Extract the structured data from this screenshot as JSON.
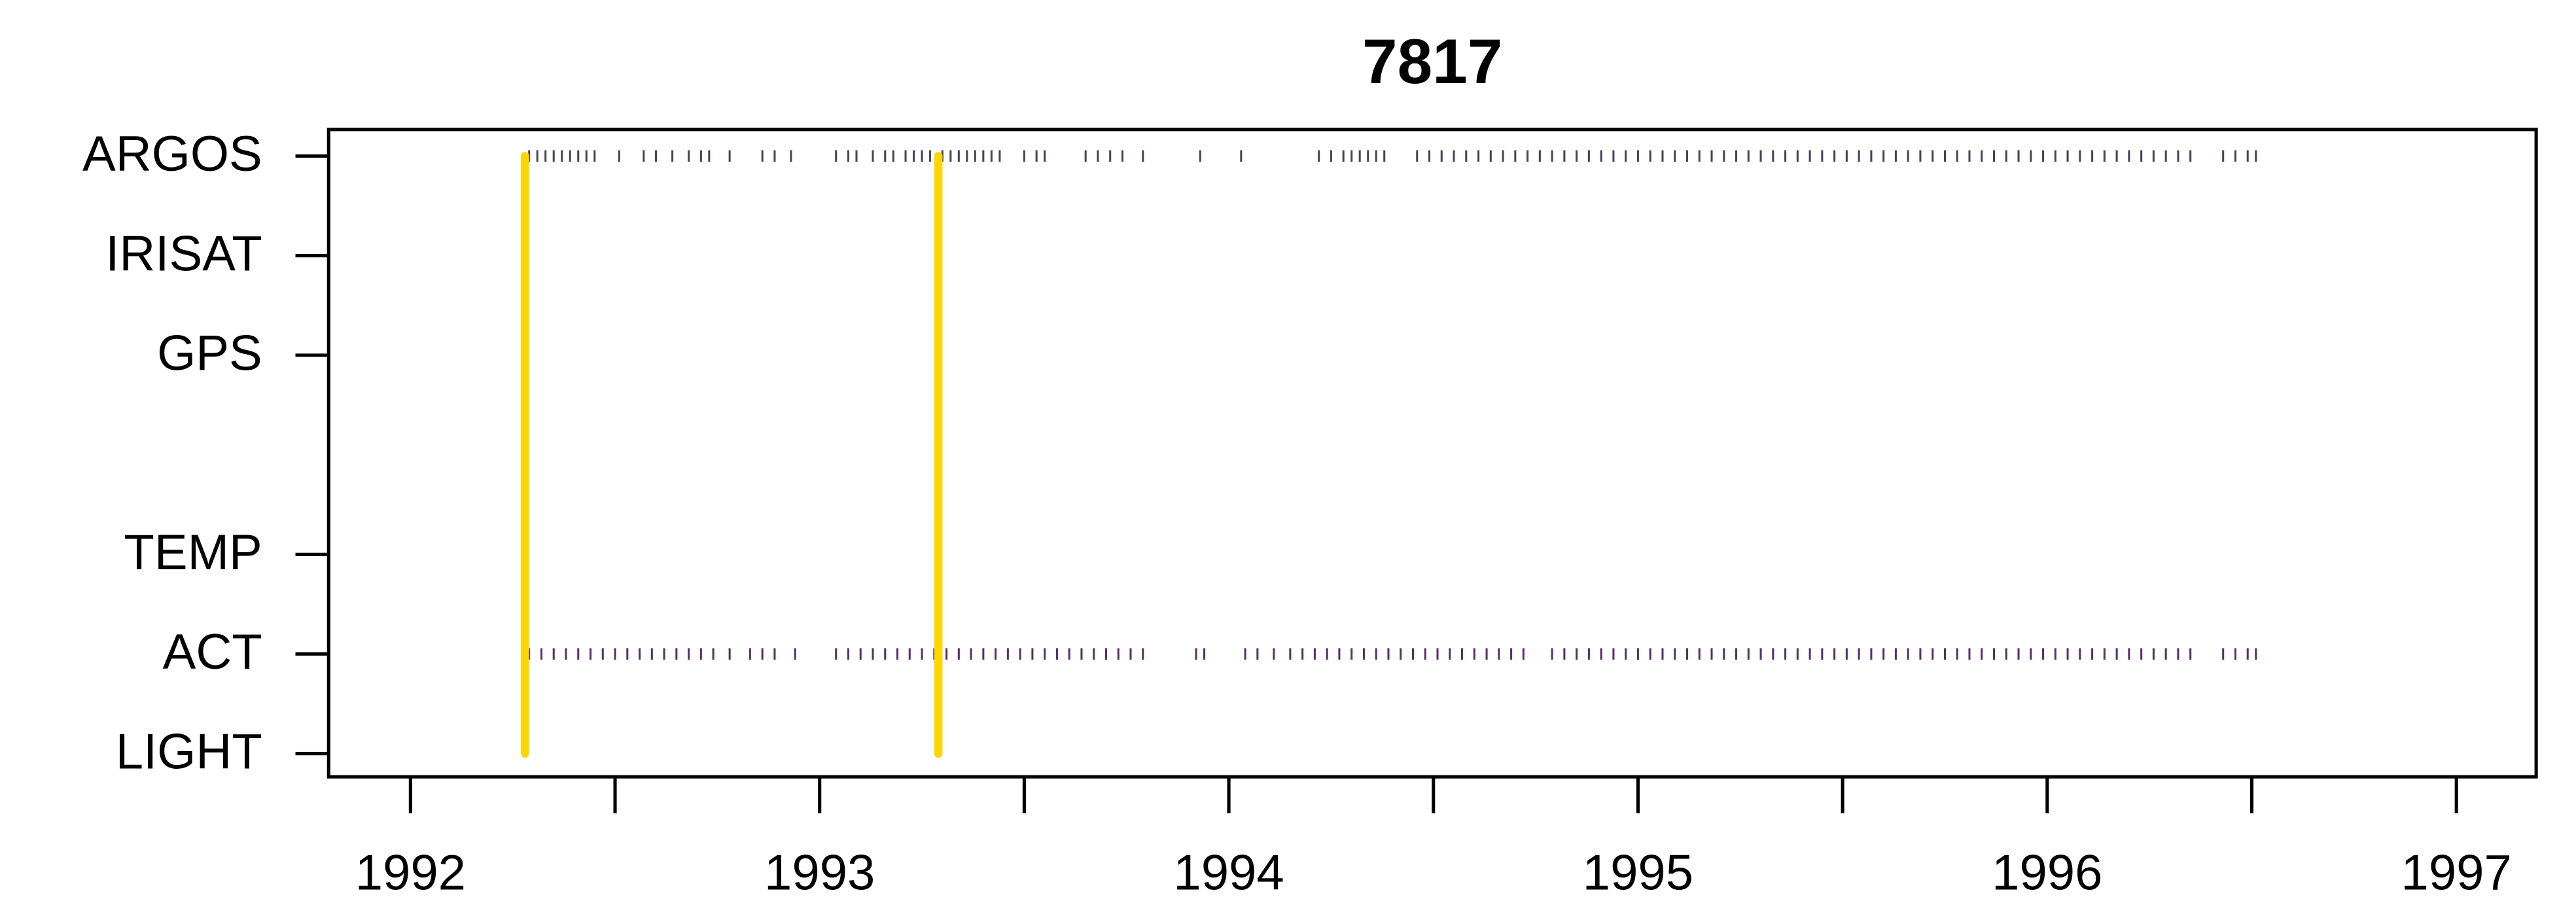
{
  "chart_data": {
    "type": "timeline",
    "title": "7817",
    "categories": [
      "ARGOS",
      "IRISAT",
      "GPS",
      null,
      "TEMP",
      "ACT",
      "LIGHT"
    ],
    "xlim": [
      1991.8,
      1997.195
    ],
    "xticks": [
      1992,
      1993,
      1994,
      1995,
      1996,
      1997
    ],
    "xminor_ticks": [
      1992.5,
      1993.5,
      1994.5,
      1995.5,
      1996.5
    ],
    "series": [
      {
        "row": 0,
        "color": "#4a4258",
        "x": [
          1992.29,
          1992.31,
          1992.33,
          1992.35,
          1992.37,
          1992.39,
          1992.41,
          1992.43,
          1992.45,
          1992.51,
          1992.57,
          1992.6,
          1992.64,
          1992.68,
          1992.71,
          1992.73,
          1992.78,
          1992.86,
          1992.89,
          1992.93,
          1993.04,
          1993.07,
          1993.09,
          1993.13,
          1993.16,
          1993.18,
          1993.21,
          1993.23,
          1993.25,
          1993.27,
          1993.3,
          1993.32,
          1993.34,
          1993.36,
          1993.38,
          1993.4,
          1993.42,
          1993.44,
          1993.5,
          1993.53,
          1993.55,
          1993.65,
          1993.68,
          1993.71,
          1993.74,
          1993.79,
          1993.93,
          1994.03,
          1994.22,
          1994.25,
          1994.28,
          1994.3,
          1994.32,
          1994.34,
          1994.36,
          1994.38,
          1994.46,
          1994.49,
          1994.52,
          1994.55,
          1994.58,
          1994.61,
          1994.64,
          1994.67,
          1994.7,
          1994.73,
          1994.76,
          1994.79,
          1994.82,
          1994.85,
          1994.88,
          1994.91,
          1994.94,
          1994.97,
          1995.0,
          1995.03,
          1995.06,
          1995.09,
          1995.12,
          1995.15,
          1995.18,
          1995.21,
          1995.24,
          1995.27,
          1995.3,
          1995.33,
          1995.36,
          1995.39,
          1995.42,
          1995.45,
          1995.48,
          1995.51,
          1995.54,
          1995.57,
          1995.6,
          1995.63,
          1995.66,
          1995.69,
          1995.72,
          1995.75,
          1995.78,
          1995.81,
          1995.84,
          1995.87,
          1995.9,
          1995.93,
          1995.96,
          1995.99,
          1996.02,
          1996.05,
          1996.08,
          1996.11,
          1996.14,
          1996.17,
          1996.2,
          1996.23,
          1996.26,
          1996.29,
          1996.32,
          1996.35,
          1996.43,
          1996.46,
          1996.49,
          1996.51
        ]
      },
      {
        "row": 5,
        "color": "#5a2f6a",
        "x": [
          1992.29,
          1992.32,
          1992.35,
          1992.38,
          1992.41,
          1992.44,
          1992.47,
          1992.5,
          1992.53,
          1992.56,
          1992.59,
          1992.62,
          1992.65,
          1992.68,
          1992.71,
          1992.74,
          1992.78,
          1992.83,
          1992.86,
          1992.89,
          1992.94,
          1993.04,
          1993.07,
          1993.1,
          1993.13,
          1993.16,
          1993.19,
          1993.22,
          1993.25,
          1993.28,
          1993.31,
          1993.34,
          1993.37,
          1993.4,
          1993.43,
          1993.46,
          1993.49,
          1993.52,
          1993.55,
          1993.58,
          1993.61,
          1993.64,
          1993.67,
          1993.7,
          1993.73,
          1993.76,
          1993.79,
          1993.92,
          1993.94,
          1994.04,
          1994.07,
          1994.11,
          1994.15,
          1994.18,
          1994.21,
          1994.24,
          1994.27,
          1994.3,
          1994.33,
          1994.36,
          1994.39,
          1994.42,
          1994.45,
          1994.48,
          1994.51,
          1994.54,
          1994.57,
          1994.6,
          1994.63,
          1994.66,
          1994.69,
          1994.72,
          1994.79,
          1994.82,
          1994.85,
          1994.88,
          1994.91,
          1994.94,
          1994.97,
          1995.0,
          1995.03,
          1995.06,
          1995.09,
          1995.12,
          1995.15,
          1995.18,
          1995.21,
          1995.24,
          1995.27,
          1995.3,
          1995.33,
          1995.36,
          1995.39,
          1995.42,
          1995.45,
          1995.48,
          1995.51,
          1995.54,
          1995.57,
          1995.6,
          1995.63,
          1995.66,
          1995.69,
          1995.72,
          1995.75,
          1995.78,
          1995.81,
          1995.84,
          1995.87,
          1995.9,
          1995.93,
          1995.96,
          1995.99,
          1996.02,
          1996.05,
          1996.08,
          1996.11,
          1996.14,
          1996.17,
          1996.2,
          1996.23,
          1996.26,
          1996.29,
          1996.32,
          1996.35,
          1996.43,
          1996.46,
          1996.49,
          1996.51
        ]
      }
    ],
    "vlines": {
      "color": "#ffd700",
      "x": [
        1992.28,
        1993.29
      ]
    }
  }
}
